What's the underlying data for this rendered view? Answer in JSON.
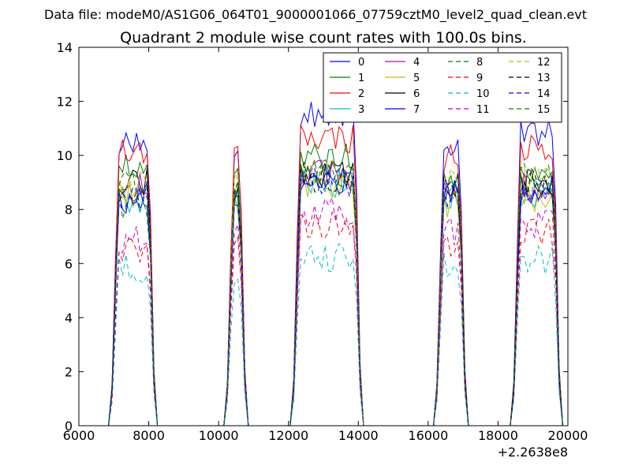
{
  "chart_data": {
    "type": "line",
    "suptitle": "Data file: modeM0/AS1G06_064T01_9000001066_07759cztM0_level2_quad_clean.evt",
    "title": "Quadrant 2 module wise count rates with 100.0s bins.",
    "xlabel": "",
    "ylabel": "",
    "x_offset_label": "+2.2638e8",
    "xlim": [
      6000,
      20000
    ],
    "ylim": [
      0,
      14
    ],
    "x_ticks": [
      6000,
      8000,
      10000,
      12000,
      14000,
      16000,
      18000,
      20000
    ],
    "y_ticks": [
      0,
      2,
      4,
      6,
      8,
      10,
      12,
      14
    ],
    "grid": false,
    "legend_position": "top-right",
    "bin_seconds": 100,
    "segments": [
      {
        "start": 6950,
        "end": 8150
      },
      {
        "start": 10250,
        "end": 10750
      },
      {
        "start": 12150,
        "end": 14050
      },
      {
        "start": 16250,
        "end": 17050
      },
      {
        "start": 18450,
        "end": 19750
      }
    ],
    "series": [
      {
        "name": "0",
        "color": "#0000ff",
        "dash": "solid",
        "level": [
          10.4,
          10.5,
          11.6,
          10.5,
          10.9
        ]
      },
      {
        "name": "1",
        "color": "#008000",
        "dash": "solid",
        "level": [
          9.7,
          9.2,
          9.9,
          9.0,
          9.5
        ]
      },
      {
        "name": "2",
        "color": "#ff0000",
        "dash": "solid",
        "level": [
          10.1,
          10.2,
          10.6,
          9.9,
          10.2
        ]
      },
      {
        "name": "3",
        "color": "#00bfbf",
        "dash": "solid",
        "level": [
          8.4,
          8.6,
          9.0,
          8.5,
          8.6
        ]
      },
      {
        "name": "4",
        "color": "#bf00bf",
        "dash": "solid",
        "level": [
          8.8,
          8.4,
          9.3,
          8.6,
          8.8
        ]
      },
      {
        "name": "5",
        "color": "#bfbf00",
        "dash": "solid",
        "level": [
          8.6,
          8.3,
          8.8,
          8.1,
          8.4
        ]
      },
      {
        "name": "6",
        "color": "#000000",
        "dash": "solid",
        "level": [
          9.0,
          8.7,
          9.3,
          8.8,
          9.0
        ]
      },
      {
        "name": "7",
        "color": "#0000ff",
        "dash": "solid",
        "level": [
          8.4,
          8.8,
          9.1,
          8.6,
          8.7
        ]
      },
      {
        "name": "8",
        "color": "#008000",
        "dash": "dashed",
        "level": [
          8.2,
          8.5,
          9.2,
          8.7,
          8.9
        ]
      },
      {
        "name": "9",
        "color": "#ff0000",
        "dash": "dashed",
        "level": [
          6.5,
          7.0,
          7.4,
          6.8,
          7.1
        ]
      },
      {
        "name": "10",
        "color": "#00bfbf",
        "dash": "dashed",
        "level": [
          5.8,
          5.8,
          6.2,
          5.9,
          6.1
        ]
      },
      {
        "name": "11",
        "color": "#bf00bf",
        "dash": "dashed",
        "level": [
          6.9,
          7.4,
          7.9,
          7.2,
          7.5
        ]
      },
      {
        "name": "12",
        "color": "#bfbf00",
        "dash": "dashed",
        "level": [
          8.9,
          9.0,
          9.4,
          9.0,
          9.1
        ]
      },
      {
        "name": "13",
        "color": "#000000",
        "dash": "dashed",
        "level": [
          8.8,
          8.9,
          9.2,
          8.8,
          9.0
        ]
      },
      {
        "name": "14",
        "color": "#0000ff",
        "dash": "dashed",
        "level": [
          8.5,
          8.6,
          9.0,
          8.6,
          8.8
        ]
      },
      {
        "name": "15",
        "color": "#008000",
        "dash": "dashed",
        "level": [
          8.9,
          9.0,
          9.4,
          9.0,
          9.2
        ]
      }
    ]
  }
}
